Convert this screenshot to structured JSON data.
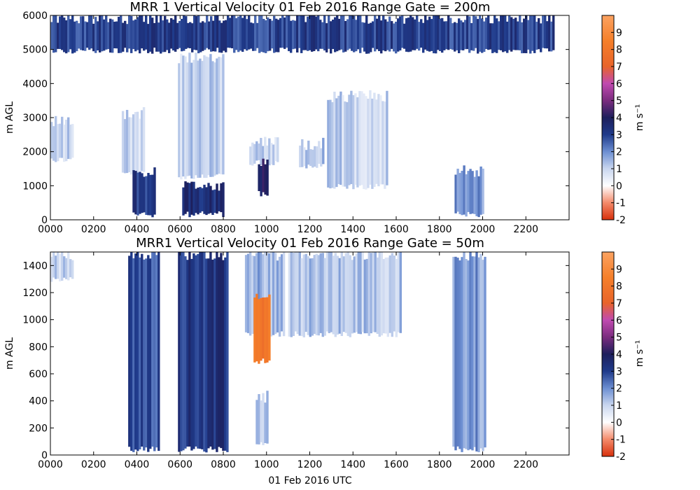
{
  "chart_data": [
    {
      "type": "heatmap",
      "title": "MRR 1 Vertical Velocity 01 Feb 2016 Range Gate = 200m",
      "xlabel": "",
      "ylabel": "m AGL",
      "xlim": [
        0,
        2400
      ],
      "ylim": [
        0,
        6000
      ],
      "xticks": [
        "0000",
        "0200",
        "0400",
        "0600",
        "0800",
        "1000",
        "1200",
        "1400",
        "1600",
        "1800",
        "2000",
        "2200"
      ],
      "yticks": [
        "0",
        "1000",
        "2000",
        "3000",
        "4000",
        "5000",
        "6000"
      ],
      "colorbar": {
        "label": "m s⁻¹",
        "range": [
          -2,
          10
        ],
        "ticks": [
          "-2",
          "-1",
          "0",
          "1",
          "2",
          "3",
          "4",
          "5",
          "6",
          "7",
          "8",
          "9"
        ]
      },
      "regions": [
        {
          "t": [
            0,
            100
          ],
          "z": [
            1800,
            3000
          ],
          "v": 1.0
        },
        {
          "t": [
            330,
            430
          ],
          "z": [
            1400,
            3200
          ],
          "v": 1.0
        },
        {
          "t": [
            380,
            480
          ],
          "z": [
            200,
            1500
          ],
          "v": 3.2
        },
        {
          "t": [
            590,
            800
          ],
          "z": [
            1300,
            4800
          ],
          "v": 1.0
        },
        {
          "t": [
            610,
            800
          ],
          "z": [
            200,
            1100
          ],
          "v": 3.4
        },
        {
          "t": [
            920,
            1050
          ],
          "z": [
            1700,
            2400
          ],
          "v": 1.0
        },
        {
          "t": [
            960,
            1000
          ],
          "z": [
            800,
            1700
          ],
          "v": 4.0
        },
        {
          "t": [
            1150,
            1260
          ],
          "z": [
            1600,
            2300
          ],
          "v": 1.2
        },
        {
          "t": [
            1280,
            1560
          ],
          "z": [
            1000,
            3700
          ],
          "v": 1.0
        },
        {
          "t": [
            1870,
            2000
          ],
          "z": [
            200,
            1500
          ],
          "v": 1.8
        },
        {
          "t": [
            0,
            2330
          ],
          "z": [
            5000,
            6000
          ],
          "v": 3.0
        }
      ]
    },
    {
      "type": "heatmap",
      "title": "MRR1 Vertical Velocity 01 Feb 2016 Range Gate = 50m",
      "xlabel": "01 Feb 2016 UTC",
      "ylabel": "m AGL",
      "xlim": [
        0,
        2400
      ],
      "ylim": [
        0,
        1500
      ],
      "xticks": [
        "0000",
        "0200",
        "0400",
        "0600",
        "0800",
        "1000",
        "1200",
        "1400",
        "1600",
        "1800",
        "2000",
        "2200"
      ],
      "yticks": [
        "0",
        "200",
        "400",
        "600",
        "800",
        "1000",
        "1200",
        "1400"
      ],
      "colorbar": {
        "label": "m s⁻¹",
        "range": [
          -2,
          10
        ],
        "ticks": [
          "-2",
          "-1",
          "0",
          "1",
          "2",
          "3",
          "4",
          "5",
          "6",
          "7",
          "8",
          "9"
        ]
      },
      "regions": [
        {
          "t": [
            0,
            100
          ],
          "z": [
            1300,
            1500
          ],
          "v": 1.0
        },
        {
          "t": [
            360,
            500
          ],
          "z": [
            50,
            1500
          ],
          "v": 2.8
        },
        {
          "t": [
            590,
            820
          ],
          "z": [
            50,
            1500
          ],
          "v": 3.2
        },
        {
          "t": [
            900,
            1080
          ],
          "z": [
            900,
            1500
          ],
          "v": 1.5
        },
        {
          "t": [
            940,
            1010
          ],
          "z": [
            700,
            1200
          ],
          "v": 8.0
        },
        {
          "t": [
            950,
            1000
          ],
          "z": [
            100,
            450
          ],
          "v": 1.2
        },
        {
          "t": [
            1100,
            1620
          ],
          "z": [
            900,
            1500
          ],
          "v": 1.2
        },
        {
          "t": [
            1860,
            2010
          ],
          "z": [
            50,
            1500
          ],
          "v": 1.8
        }
      ]
    }
  ]
}
